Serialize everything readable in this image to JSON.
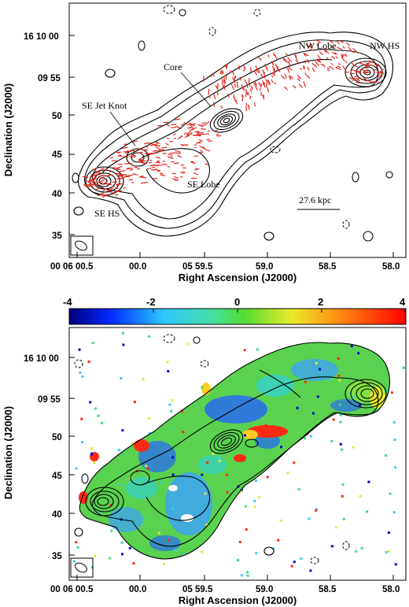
{
  "top_panel": {
    "y_axis_title": "Declination (J2000)",
    "x_axis_title": "Right Ascension (J2000)",
    "y_ticks": [
      "16 10 00",
      "09 55",
      "50",
      "45",
      "40",
      "35"
    ],
    "x_ticks": [
      "00 06 00.5",
      "00.0",
      "05 59.5",
      "59.0",
      "58.5",
      "58.0"
    ],
    "annotations": {
      "nw_lobe": "NW Lobe",
      "nw_hs": "NW HS",
      "core": "Core",
      "se_jet_knot": "SE Jet Knot",
      "se_lobe": "SE Lobe",
      "se_hs": "SE HS",
      "scale_bar": "27.6 kpc"
    },
    "colors": {
      "contours": "#000000",
      "polarization_vectors": "#e0281e"
    }
  },
  "bottom_panel": {
    "y_axis_title": "Declination (J2000)",
    "x_axis_title": "Right Ascension (J2000)",
    "y_ticks": [
      "16 10 00",
      "09 55",
      "50",
      "45",
      "40",
      "35"
    ],
    "x_ticks": [
      "00 06 00.5",
      "00.0",
      "05 59.5",
      "59.0",
      "58.5",
      "58.0"
    ],
    "colorbar": {
      "ticks": [
        "-4",
        "-2",
        "0",
        "2",
        "4"
      ],
      "range": [
        -4,
        4
      ],
      "colormap": [
        "#0000c8",
        "#3cc8ff",
        "#3cdc78",
        "#e6e632",
        "#ff2a14"
      ]
    }
  }
}
